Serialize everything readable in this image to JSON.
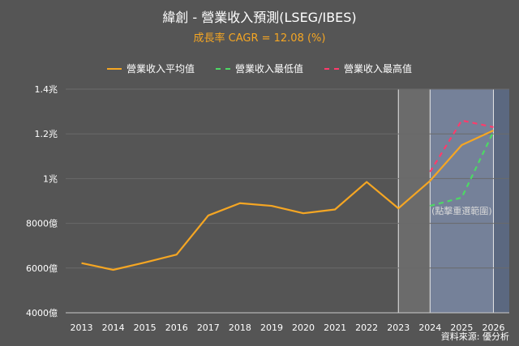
{
  "chart_data": {
    "type": "line",
    "title": "緯創 - 營業收入預測(LSEG/IBES)",
    "subtitle": "成長率 CAGR = 12.08 (%)",
    "x": [
      "2013",
      "2014",
      "2015",
      "2016",
      "2017",
      "2018",
      "2019",
      "2020",
      "2021",
      "2022",
      "2023",
      "2024",
      "2025",
      "2026"
    ],
    "y_ticks": [
      "4000億",
      "6000億",
      "8000億",
      "1兆",
      "1.2兆",
      "1.4兆"
    ],
    "ylim": [
      400000000000,
      1400000000000
    ],
    "series": [
      {
        "name": "營業收入平均值",
        "color": "#f5a623",
        "style": "solid",
        "values": [
          622000000000,
          592000000000,
          625000000000,
          660000000000,
          835000000000,
          890000000000,
          878000000000,
          845000000000,
          862000000000,
          985000000000,
          867000000000,
          990000000000,
          1150000000000,
          1215000000000
        ]
      },
      {
        "name": "營業收入最低值",
        "color": "#4cd964",
        "style": "dashed",
        "values": [
          null,
          null,
          null,
          null,
          null,
          null,
          null,
          null,
          null,
          null,
          null,
          878000000000,
          915000000000,
          1210000000000
        ]
      },
      {
        "name": "營業收入最高值",
        "color": "#ff3b6b",
        "style": "dashed",
        "values": [
          null,
          null,
          null,
          null,
          null,
          null,
          null,
          null,
          null,
          null,
          null,
          1030000000000,
          1260000000000,
          1230000000000
        ]
      }
    ],
    "annotation": "(點擊重選範圍)",
    "grid": true,
    "legend_position": "top"
  },
  "source_label": "資料來源: 優分析"
}
